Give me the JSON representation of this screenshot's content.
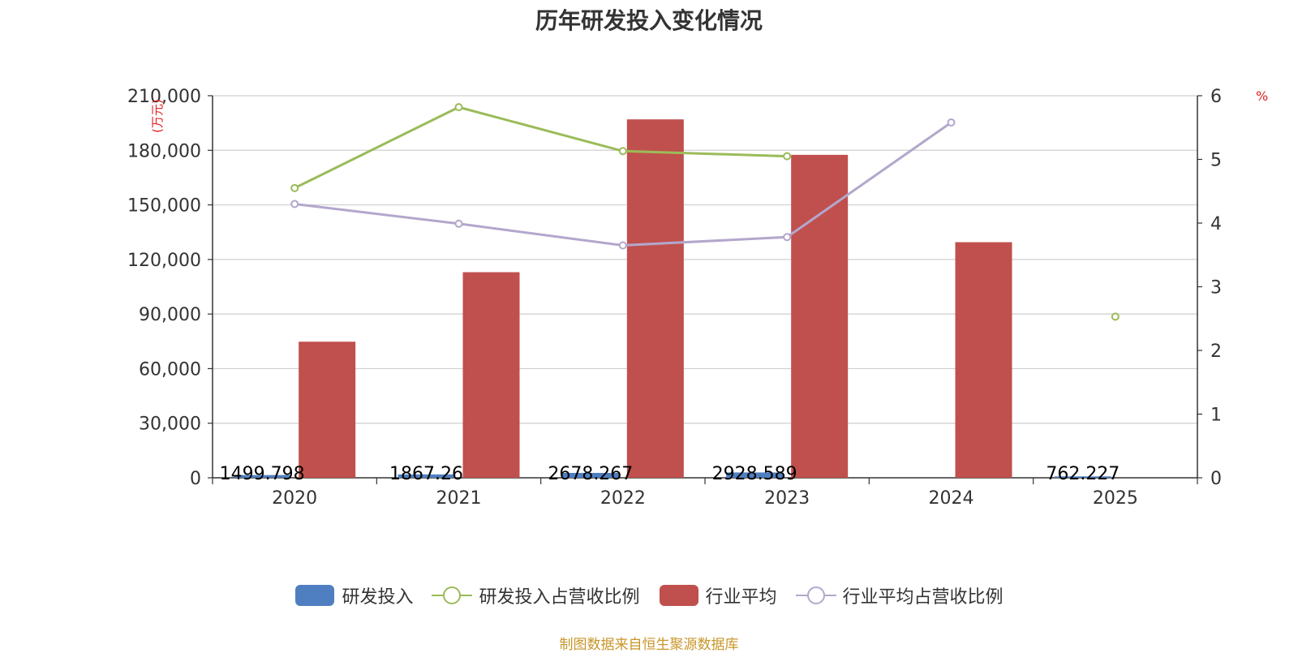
{
  "chart_data": {
    "type": "bar",
    "title": "历年研发投入变化情况",
    "y_left_unit": "(万元)",
    "y_right_unit": "%",
    "categories": [
      "2020",
      "2021",
      "2022",
      "2023",
      "2024",
      "2025"
    ],
    "y_left_ticks": [
      "0",
      "30,000",
      "60,000",
      "90,000",
      "120,000",
      "150,000",
      "180,000",
      "210,000"
    ],
    "y_right_ticks": [
      "0",
      "1",
      "2",
      "3",
      "4",
      "5",
      "6"
    ],
    "ylim_left": [
      0,
      210000
    ],
    "ylim_right": [
      0,
      6
    ],
    "grid": true,
    "legend_position": "bottom",
    "series": [
      {
        "name": "研发投入",
        "kind": "bar",
        "axis": "left",
        "color": "#4f7fc0",
        "values": [
          1499.798,
          1867.26,
          2678.267,
          2928.589,
          null,
          762.227
        ],
        "labels": [
          "1499.798",
          "1867.26",
          "2678.267",
          "2928.589",
          "",
          "762.227"
        ]
      },
      {
        "name": "研发投入占营收比例",
        "kind": "line",
        "axis": "right",
        "color": "#9bbb59",
        "values": [
          4.55,
          5.82,
          5.13,
          5.05,
          null,
          2.53
        ]
      },
      {
        "name": "行业平均",
        "kind": "bar",
        "axis": "left",
        "color": "#c0504d",
        "values": [
          74800,
          113000,
          197000,
          177500,
          129500,
          null
        ]
      },
      {
        "name": "行业平均占营收比例",
        "kind": "line",
        "axis": "right",
        "color": "#b3a7cc",
        "values": [
          4.3,
          3.99,
          3.65,
          3.78,
          5.58,
          null
        ]
      }
    ],
    "source": "制图数据来自恒生聚源数据库"
  }
}
